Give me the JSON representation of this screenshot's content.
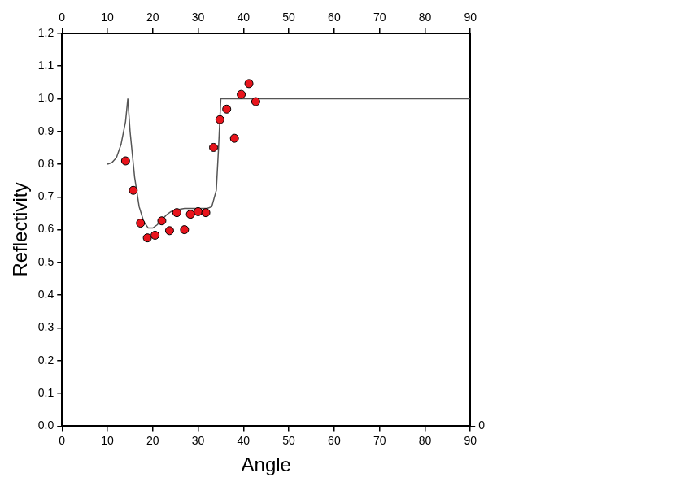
{
  "chart_data": {
    "type": "scatter",
    "x_label": "Angle",
    "y_label": "Reflectivity",
    "xlim": [
      0,
      90
    ],
    "xticks": [
      0,
      10,
      20,
      30,
      40,
      50,
      60,
      70,
      80,
      90
    ],
    "x2lim": [
      0,
      90
    ],
    "x2ticks": [
      0,
      10,
      20,
      30,
      40,
      50,
      60,
      70,
      80,
      90
    ],
    "ylim": [
      0,
      1.2
    ],
    "yticks": [
      {
        "value": 0,
        "label": "0.0"
      },
      0.1,
      0.2,
      0.3,
      0.4,
      0.5,
      0.6,
      0.7,
      0.8,
      0.9,
      {
        "value": 1,
        "label": "1.0"
      },
      1.1,
      1.2
    ],
    "y2lim": [
      0,
      1.2
    ],
    "y2ticks": [
      0
    ],
    "grid": false,
    "series": [
      {
        "type": "line",
        "color": "#555555",
        "line_style": "solid",
        "x": [
          10,
          11,
          12,
          13,
          14,
          14.5,
          15,
          16,
          17,
          18,
          19,
          20,
          21,
          22,
          23,
          24,
          25,
          27,
          30,
          32,
          33,
          34,
          34.5,
          35,
          40,
          90
        ],
        "values": [
          0.8,
          0.805,
          0.82,
          0.86,
          0.93,
          1.0,
          0.9,
          0.76,
          0.67,
          0.625,
          0.605,
          0.605,
          0.615,
          0.63,
          0.645,
          0.655,
          0.66,
          0.665,
          0.665,
          0.665,
          0.67,
          0.72,
          0.85,
          1.0,
          1.0,
          1.0
        ]
      },
      {
        "type": "scatter",
        "color": "#e8141c",
        "marker": "circle",
        "x": [
          14.0,
          15.7,
          17.3,
          18.8,
          20.5,
          22.0,
          23.7,
          25.3,
          27.0,
          28.3,
          30.0,
          31.7,
          33.4,
          34.8,
          36.3,
          38.0,
          39.5,
          41.2,
          42.7
        ],
        "values": [
          0.81,
          0.72,
          0.62,
          0.575,
          0.583,
          0.627,
          0.597,
          0.652,
          0.6,
          0.647,
          0.655,
          0.652,
          0.851,
          0.936,
          0.968,
          0.879,
          1.013,
          1.046,
          0.991
        ]
      }
    ]
  }
}
